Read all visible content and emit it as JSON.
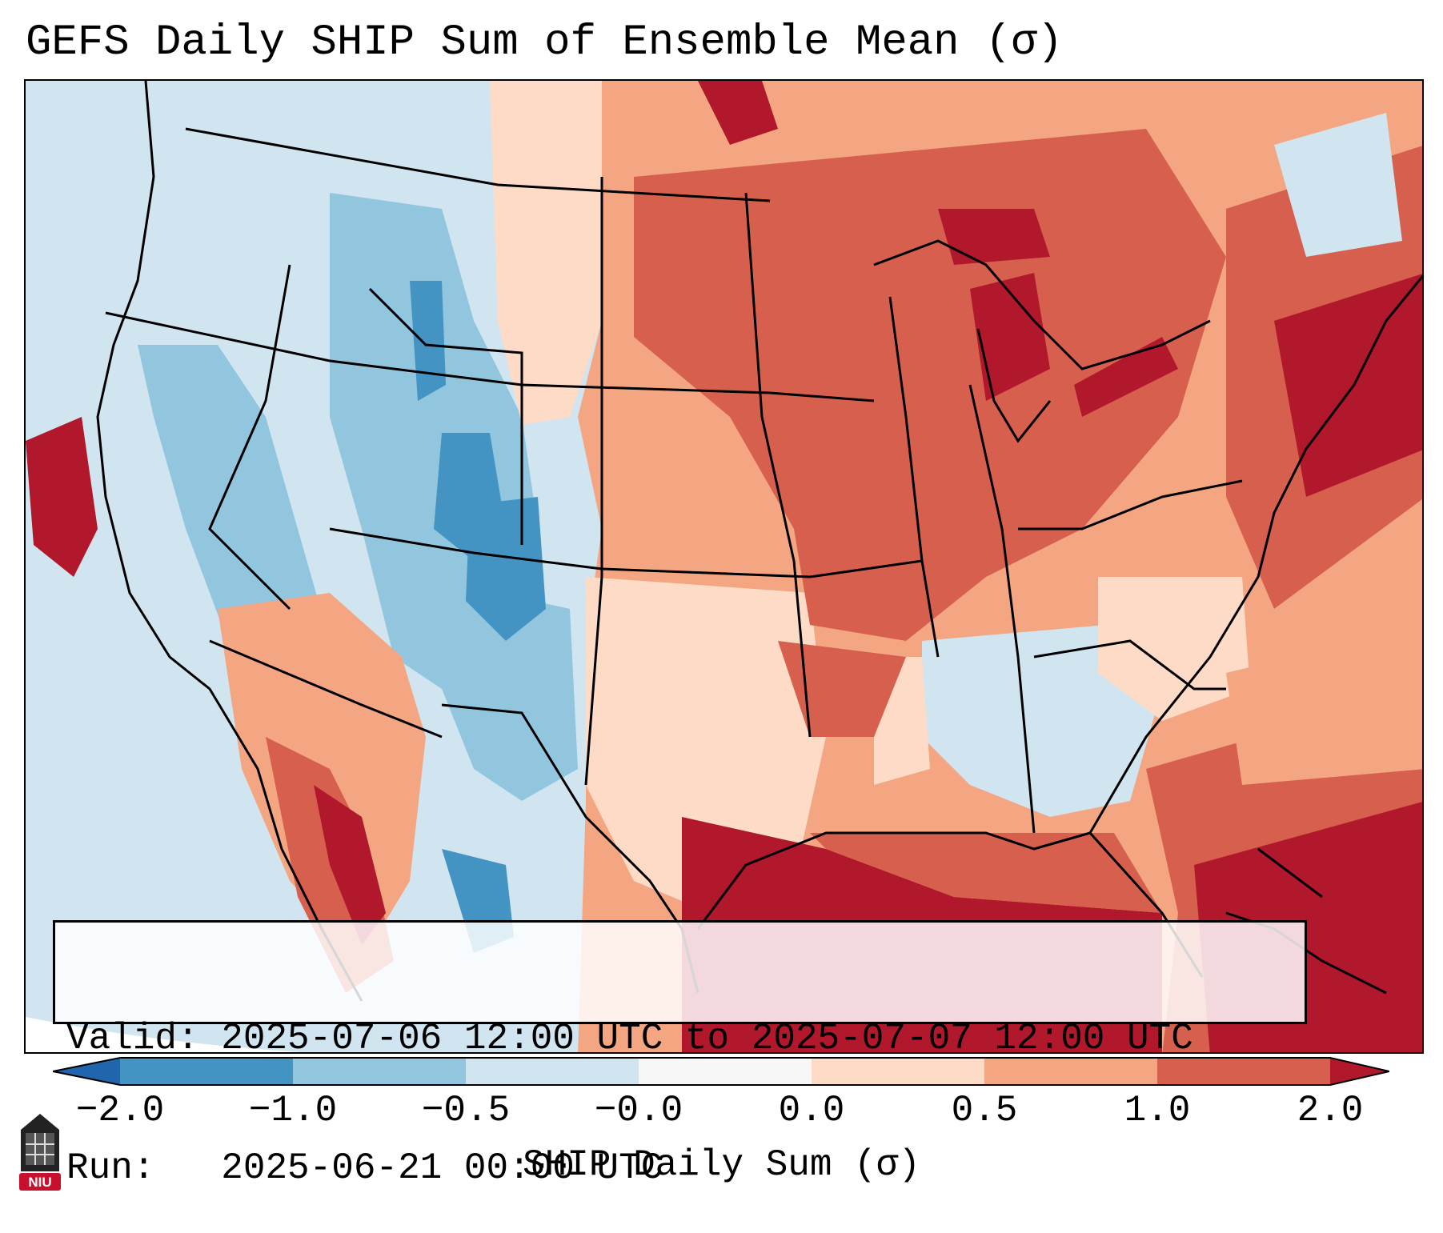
{
  "title": "GEFS Daily SHIP Sum of Ensemble Mean (σ)",
  "info": {
    "valid": "Valid: 2025-07-06 12:00 UTC to 2025-07-07 12:00 UTC",
    "run": "Run:   2025-06-21 00:00 UTC"
  },
  "colorbar": {
    "label": "SHIP Daily Sum (σ)",
    "ticks": [
      "−2.0",
      "−1.0",
      "−0.5",
      "−0.0",
      "0.0",
      "0.5",
      "1.0",
      "2.0"
    ],
    "colors": [
      "#4393c3",
      "#92c5de",
      "#d1e5f0",
      "#f7f7f7",
      "#fddbc7",
      "#f4a582",
      "#d6604d"
    ],
    "under_color": "#2166ac",
    "over_color": "#b2182b"
  },
  "palette": {
    "ocean": "#d1e5f0",
    "strong_red": "#b2182b",
    "red": "#d6604d",
    "salmon": "#f4a582",
    "pink": "#fddbc7",
    "white": "#f7f7f7",
    "light_blue": "#d1e5f0",
    "mid_blue": "#92c5de",
    "blue": "#4393c3"
  },
  "logo": {
    "text": "NIU",
    "color": "#c8102e"
  }
}
